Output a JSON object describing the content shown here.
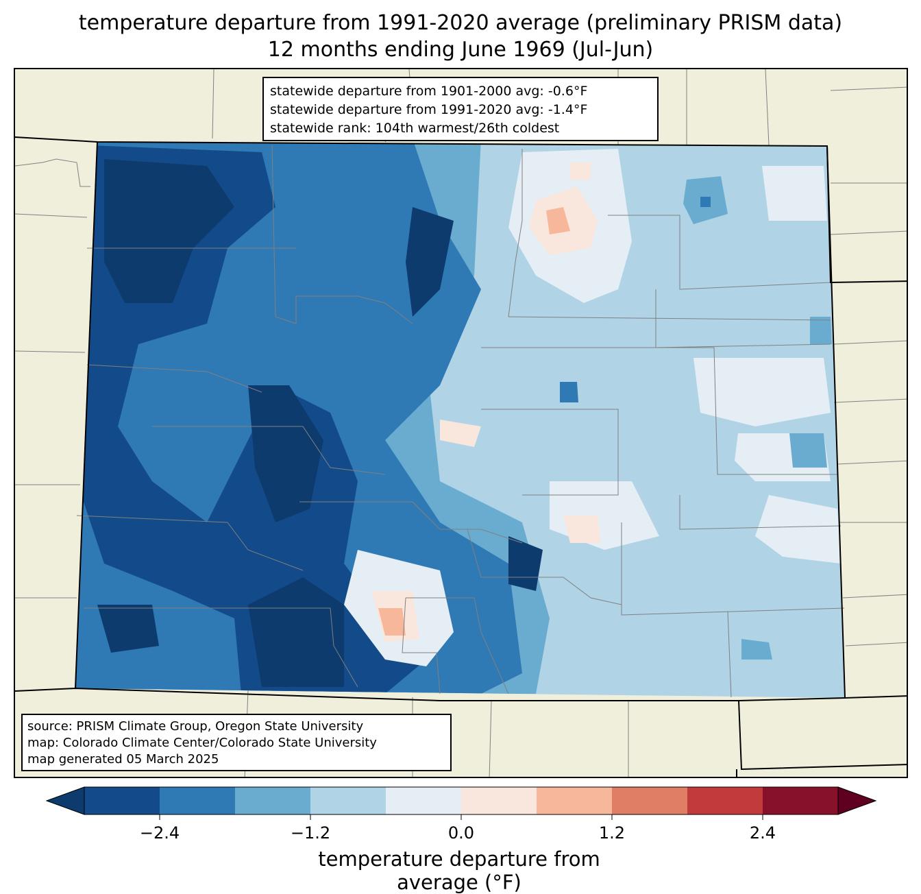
{
  "title": {
    "line1": "temperature departure from 1991-2020 average (preliminary PRISM data)",
    "line2": "12 months ending June 1969 (Jul-Jun)"
  },
  "stats": {
    "line1": "statewide departure from 1901-2000 avg: -0.6°F",
    "line2": "statewide departure from 1991-2020 avg: -1.4°F",
    "line3": "statewide rank: 104th warmest/26th coldest"
  },
  "source": {
    "line1": "source: PRISM Climate Group, Oregon State University",
    "line2": "map: Colorado Climate Center/Colorado State University",
    "line3": "map generated 05 March 2025"
  },
  "colorbar": {
    "label": "temperature departure from average (°F)",
    "ticks": [
      "−2.4",
      "−1.2",
      "0.0",
      "1.2",
      "2.4"
    ],
    "colors": [
      "#0d3b6e",
      "#134b8a",
      "#2f79b5",
      "#6aacd0",
      "#b0d3e6",
      "#e6eef5",
      "#f9e6dd",
      "#f7b79b",
      "#e07e65",
      "#c13b3c",
      "#87102a",
      "#5f0020"
    ]
  }
}
